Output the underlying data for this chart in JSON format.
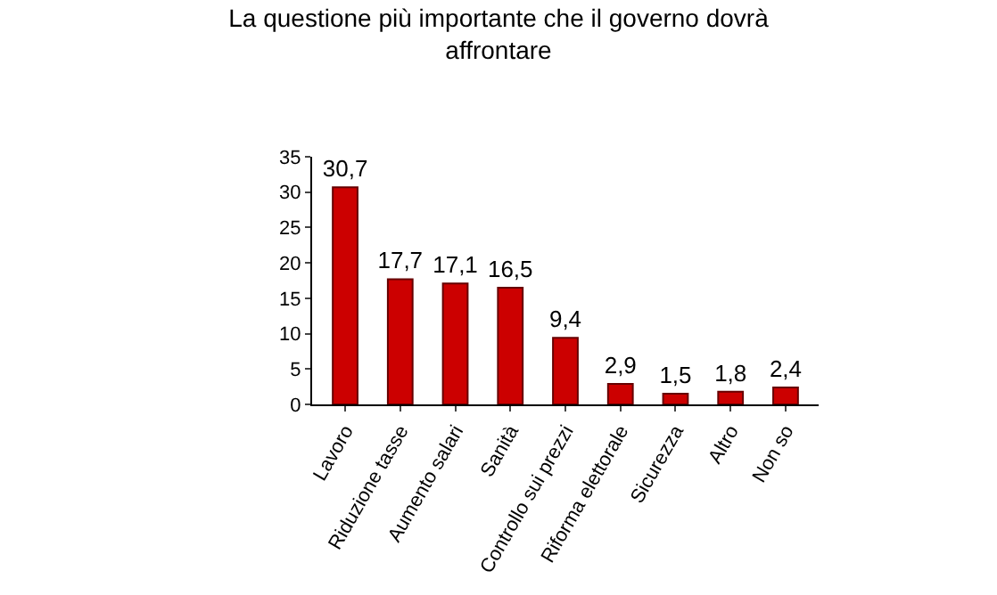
{
  "chart_data": {
    "type": "bar",
    "title": "La questione più importante che il governo dovrà affrontare",
    "categories": [
      "Lavoro",
      "Riduzione tasse",
      "Aumento salari",
      "Sanità",
      "Controllo sui prezzi",
      "Riforma elettorale",
      "Sicurezza",
      "Altro",
      "Non so"
    ],
    "values": [
      30.7,
      17.7,
      17.1,
      16.5,
      9.4,
      2.9,
      1.5,
      1.8,
      2.4
    ],
    "value_labels": [
      "30,7",
      "17,7",
      "17,1",
      "16,5",
      "9,4",
      "2,9",
      "1,5",
      "1,8",
      "2,4"
    ],
    "color": "#cc0000",
    "ylim": [
      0,
      35
    ],
    "yticks": [
      0,
      5,
      10,
      15,
      20,
      25,
      30,
      35
    ],
    "grid": false,
    "legend": false
  }
}
